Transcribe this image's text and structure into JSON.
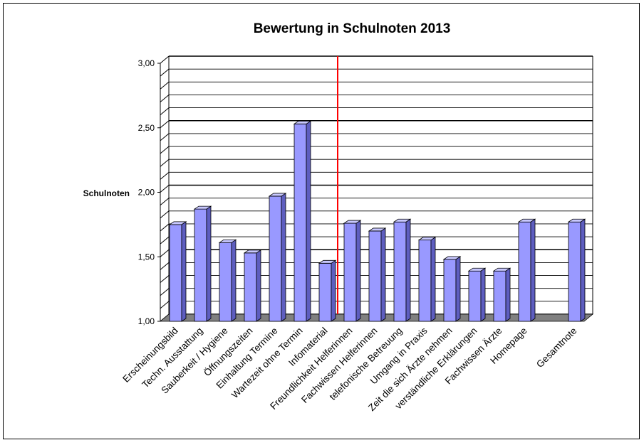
{
  "chart_data": {
    "type": "bar",
    "title": "Bewertung in Schulnoten 2013",
    "ylabel": "Schulnoten",
    "xlabel": "",
    "ylim": [
      1.0,
      3.0
    ],
    "yticks": [
      "1,00",
      "1,50",
      "2,00",
      "2,50",
      "3,00"
    ],
    "grid": true,
    "categories": [
      "Erscheinungsbild",
      "Techn. Ausstattung",
      "Sauberkeit / Hygiene",
      "Öffnungszeiten",
      "Einhaltung Termine",
      "Wartezeit ohne Termin",
      "Infomaterial",
      "Freundlichkeit Helferinnen",
      "Fachwissen Helferinnen",
      "telefonische Betreuung",
      "Umgang in Praxis",
      "Zeit die sich Ärzte nehmen",
      "verständliche Erklärungen",
      "Fachwissen Ärzte",
      "Homepage",
      "",
      "Gesamtnote"
    ],
    "values": [
      1.75,
      1.87,
      1.61,
      1.53,
      1.97,
      2.53,
      1.45,
      1.76,
      1.7,
      1.77,
      1.63,
      1.48,
      1.39,
      1.39,
      1.77,
      null,
      1.77
    ],
    "colors": {
      "bar_front": "#9999ff",
      "bar_side": "#5e5ec0",
      "bar_top": "#c8c8ff",
      "floor": "#808080",
      "grid": "#000000",
      "marker_line": "#ff0000"
    },
    "reference_line_after": "Infomaterial"
  }
}
